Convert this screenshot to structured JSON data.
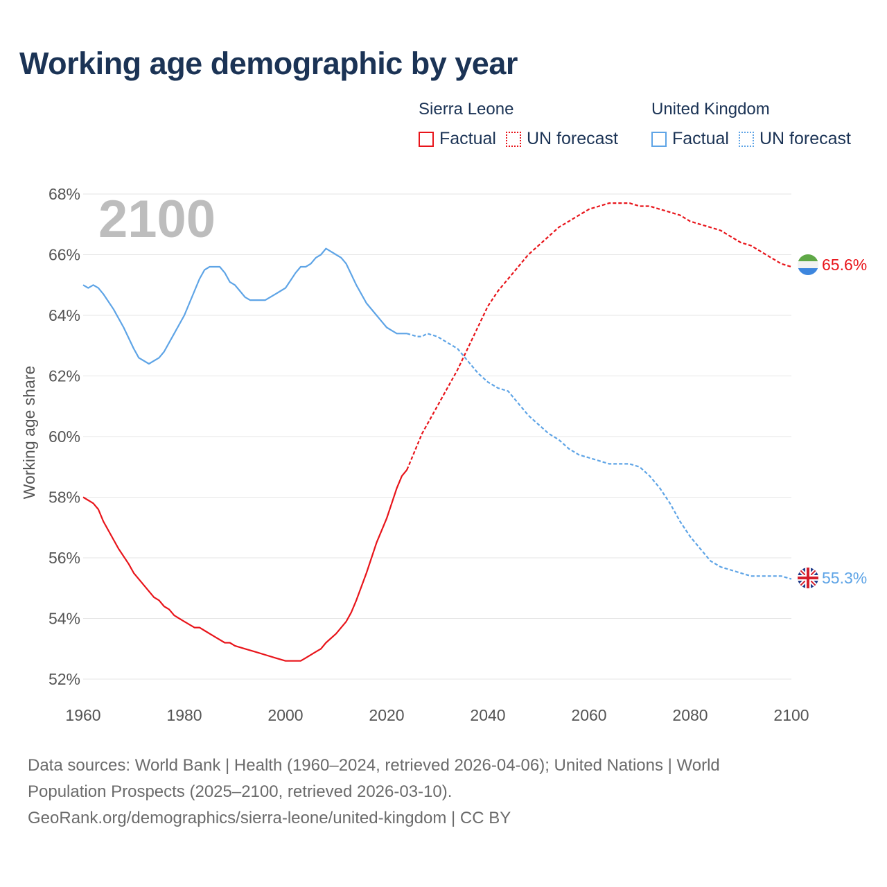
{
  "title": "Working age demographic by year",
  "legend": {
    "sierra_leone": {
      "name": "Sierra Leone",
      "factual": "Factual",
      "forecast": "UN forecast"
    },
    "united_kingdom": {
      "name": "United Kingdom",
      "factual": "Factual",
      "forecast": "UN forecast"
    }
  },
  "colors": {
    "sierra_leone": "#e8141a",
    "united_kingdom": "#5ea4e6",
    "grid": "#e6e6e6"
  },
  "sources": {
    "line1": "Data sources: World Bank | Health (1960–2024, retrieved 2026-04-06); United Nations | World",
    "line2": "Population Prospects (2025–2100, retrieved 2026-03-10).",
    "line3": "GeoRank.org/demographics/sierra-leone/united-kingdom | CC BY"
  },
  "chart_data": {
    "type": "line",
    "title": "Working age demographic by year",
    "year_label": "2100",
    "xlabel": "",
    "ylabel": "Working age share",
    "xlim": [
      1960,
      2100
    ],
    "ylim": [
      52,
      68
    ],
    "x_ticks": [
      1960,
      1980,
      2000,
      2020,
      2040,
      2060,
      2080,
      2100
    ],
    "y_ticks": [
      52,
      54,
      56,
      58,
      60,
      62,
      64,
      66,
      68
    ],
    "y_tick_labels": [
      "52%",
      "54%",
      "56%",
      "58%",
      "60%",
      "62%",
      "64%",
      "66%",
      "68%"
    ],
    "factual_end_year": 2024,
    "series": [
      {
        "name": "Sierra Leone",
        "end_label": "65.6%",
        "flag": "sierra-leone-flag-icon",
        "x": [
          1960,
          1962,
          1963,
          1964,
          1965,
          1967,
          1969,
          1970,
          1972,
          1974,
          1975,
          1976,
          1977,
          1978,
          1980,
          1982,
          1983,
          1984,
          1986,
          1988,
          1989,
          1990,
          1992,
          1994,
          1996,
          1998,
          2000,
          2002,
          2003,
          2004,
          2006,
          2007,
          2008,
          2010,
          2012,
          2013,
          2014,
          2016,
          2018,
          2019,
          2020,
          2021,
          2022,
          2023,
          2024,
          2025,
          2026,
          2027,
          2028,
          2030,
          2032,
          2034,
          2036,
          2038,
          2040,
          2042,
          2044,
          2046,
          2048,
          2050,
          2052,
          2054,
          2056,
          2058,
          2060,
          2062,
          2064,
          2066,
          2068,
          2070,
          2072,
          2074,
          2076,
          2078,
          2080,
          2082,
          2084,
          2086,
          2088,
          2090,
          2092,
          2094,
          2096,
          2098,
          2100
        ],
        "values": [
          58.0,
          57.8,
          57.6,
          57.2,
          56.9,
          56.3,
          55.8,
          55.5,
          55.1,
          54.7,
          54.6,
          54.4,
          54.3,
          54.1,
          53.9,
          53.7,
          53.7,
          53.6,
          53.4,
          53.2,
          53.2,
          53.1,
          53.0,
          52.9,
          52.8,
          52.7,
          52.6,
          52.6,
          52.6,
          52.7,
          52.9,
          53.0,
          53.2,
          53.5,
          53.9,
          54.2,
          54.6,
          55.5,
          56.5,
          56.9,
          57.3,
          57.8,
          58.3,
          58.7,
          58.9,
          59.3,
          59.7,
          60.1,
          60.4,
          61.0,
          61.6,
          62.2,
          62.9,
          63.6,
          64.3,
          64.8,
          65.2,
          65.6,
          66.0,
          66.3,
          66.6,
          66.9,
          67.1,
          67.3,
          67.5,
          67.6,
          67.7,
          67.7,
          67.7,
          67.6,
          67.6,
          67.5,
          67.4,
          67.3,
          67.1,
          67.0,
          66.9,
          66.8,
          66.6,
          66.4,
          66.3,
          66.1,
          65.9,
          65.7,
          65.6
        ]
      },
      {
        "name": "United Kingdom",
        "end_label": "55.3%",
        "flag": "united-kingdom-flag-icon",
        "x": [
          1960,
          1961,
          1962,
          1963,
          1964,
          1966,
          1968,
          1970,
          1971,
          1973,
          1975,
          1976,
          1978,
          1980,
          1982,
          1983,
          1984,
          1985,
          1986,
          1987,
          1988,
          1989,
          1990,
          1991,
          1992,
          1993,
          1994,
          1996,
          1998,
          1999,
          2000,
          2002,
          2003,
          2004,
          2005,
          2006,
          2007,
          2008,
          2009,
          2010,
          2011,
          2012,
          2014,
          2016,
          2018,
          2019,
          2020,
          2021,
          2022,
          2023,
          2024,
          2026,
          2027,
          2028,
          2030,
          2032,
          2034,
          2036,
          2038,
          2040,
          2042,
          2044,
          2046,
          2048,
          2050,
          2052,
          2054,
          2056,
          2058,
          2060,
          2062,
          2064,
          2066,
          2068,
          2070,
          2072,
          2074,
          2076,
          2078,
          2080,
          2082,
          2084,
          2086,
          2088,
          2090,
          2092,
          2094,
          2096,
          2098,
          2100
        ],
        "values": [
          65.0,
          64.9,
          65.0,
          64.9,
          64.7,
          64.2,
          63.6,
          62.9,
          62.6,
          62.4,
          62.6,
          62.8,
          63.4,
          64.0,
          64.8,
          65.2,
          65.5,
          65.6,
          65.6,
          65.6,
          65.4,
          65.1,
          65.0,
          64.8,
          64.6,
          64.5,
          64.5,
          64.5,
          64.7,
          64.8,
          64.9,
          65.4,
          65.6,
          65.6,
          65.7,
          65.9,
          66.0,
          66.2,
          66.1,
          66.0,
          65.9,
          65.7,
          65.0,
          64.4,
          64.0,
          63.8,
          63.6,
          63.5,
          63.4,
          63.4,
          63.4,
          63.3,
          63.3,
          63.4,
          63.3,
          63.1,
          62.9,
          62.5,
          62.1,
          61.8,
          61.6,
          61.5,
          61.1,
          60.7,
          60.4,
          60.1,
          59.9,
          59.6,
          59.4,
          59.3,
          59.2,
          59.1,
          59.1,
          59.1,
          59.0,
          58.7,
          58.3,
          57.8,
          57.2,
          56.7,
          56.3,
          55.9,
          55.7,
          55.6,
          55.5,
          55.4,
          55.4,
          55.4,
          55.4,
          55.3
        ]
      }
    ]
  }
}
